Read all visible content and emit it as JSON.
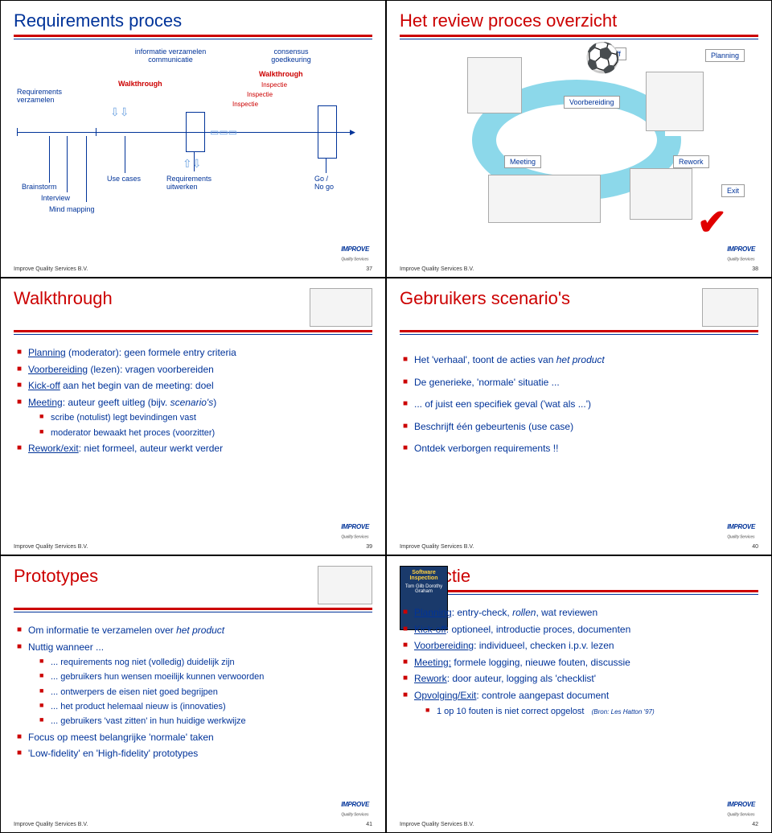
{
  "footer_org": "Improve Quality Services B.V.",
  "logo_text": "IMPROVE",
  "logo_sub": "Quality Services",
  "slides": {
    "s37": {
      "num": "37",
      "title": "Requirements proces",
      "title_color": "blue",
      "n1": "informatie verzamelen",
      "n1b": "communicatie",
      "n2": "consensus",
      "n2b": "goedkeuring",
      "w1": "Walkthrough",
      "w2": "Walkthrough",
      "i1": "Inspectie",
      "i2": "Inspectie",
      "i3": "Inspectie",
      "req": "Requirements",
      "verz": "verzamelen",
      "brain": "Brainstorm",
      "intv": "Interview",
      "mind": "Mind mapping",
      "uc": "Use cases",
      "ru": "Requirements",
      "ru2": "uitwerken",
      "go": "Go /",
      "go2": "No go"
    },
    "s38": {
      "num": "38",
      "title": "Het review proces overzicht",
      "title_color": "red",
      "kick": "Kick-Off",
      "plan": "Planning",
      "voor": "Voorbereiding",
      "meet": "Meeting",
      "rework": "Rework",
      "exit": "Exit"
    },
    "s39": {
      "num": "39",
      "title": "Walkthrough",
      "title_color": "red",
      "items": [
        "<span class='u'>Planning</span> (moderator): geen formele entry criteria",
        "<span class='u'>Voorbereiding</span> (lezen): vragen voorbereiden",
        "<span class='u'>Kick-off</span> aan het begin van de meeting: doel",
        "<span class='u'>Meeting</span>: auteur geeft uitleg (bijv. <span class='it'>scenario's</span>)"
      ],
      "sub1": "scribe (notulist) legt bevindingen vast",
      "sub2": "moderator bewaakt het proces (voorzitter)",
      "last": "<span class='u'>Rework/exit</span>: niet formeel, auteur werkt verder"
    },
    "s40": {
      "num": "40",
      "title": "Gebruikers scenario's",
      "title_color": "red",
      "items": [
        "Het <span class='quote'>'verhaal'</span>, toont de acties van <span class='it'>het product</span>",
        "De generieke, 'normale' situatie ...",
        "... of juist een specifiek geval ('wat als ...')",
        "Beschrijft één gebeurtenis (use case)",
        "Ontdek verborgen requirements !!"
      ]
    },
    "s41": {
      "num": "41",
      "title": "Prototypes",
      "title_color": "red",
      "i1": "Om informatie te verzamelen over <span class='it'>het product</span>",
      "i2": "Nuttig wanneer ...",
      "subs": [
        "... requirements nog niet (volledig) duidelijk zijn",
        "... gebruikers hun wensen moeilijk kunnen verwoorden",
        "... ontwerpers de eisen niet goed begrijpen",
        "... het product helemaal nieuw is (innovaties)",
        "... gebruikers 'vast zitten' in hun huidige werkwijze"
      ],
      "i3": "Focus op meest belangrijke 'normale' taken",
      "i4": "'Low-fidelity' en 'High-fidelity' prototypes"
    },
    "s42": {
      "num": "42",
      "title": "Inspectie",
      "title_color": "red",
      "items": [
        "<span class='u'>Planning</span>: entry-check, <span class='it'>rollen</span>, wat reviewen",
        "<span class='u'>Kick-off</span>: optioneel, introductie proces, documenten",
        "<span class='u'>Voorbereiding</span>: individueel, checken i.p.v. lezen",
        "<span class='u'>Meeting:</span> formele logging, nieuwe fouten, discussie",
        "<span class='u'>Rework</span>: door auteur, logging als 'checklist'",
        "<span class='u'>Opvolging/Exit</span>: controle aangepast document"
      ],
      "subitem": "1 op 10 fouten is niet correct opgelost",
      "cite": "(Bron: Les Hatton '97)",
      "book_title": "Software Inspection",
      "book_auth": "Tom Gilb Dorothy Graham"
    }
  }
}
